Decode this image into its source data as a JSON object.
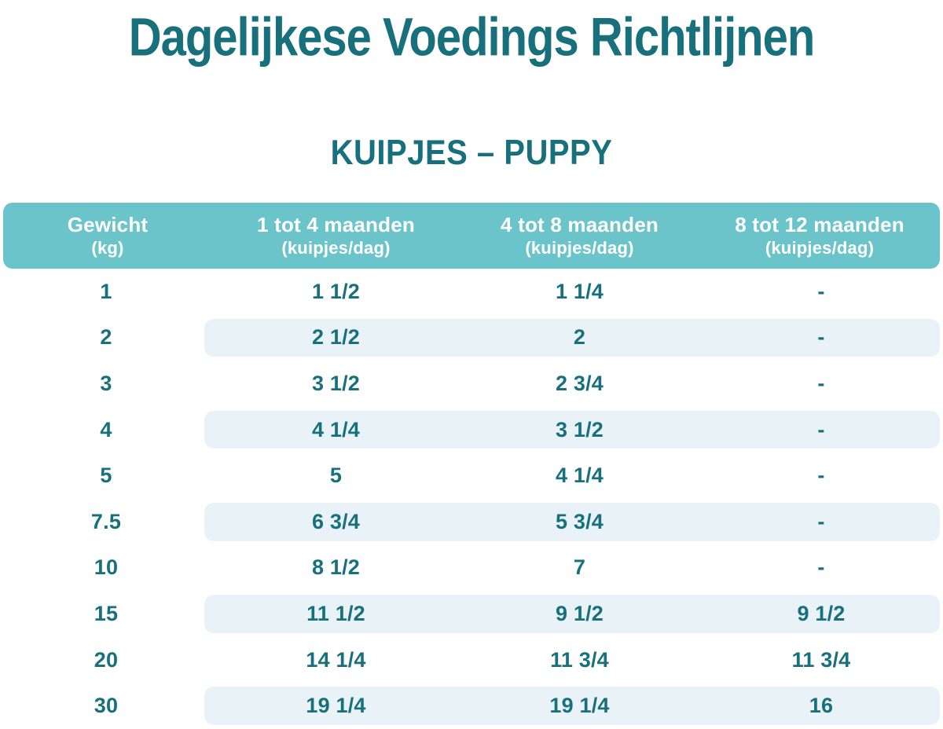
{
  "title": "Dagelijkese Voedings Richtlijnen",
  "subtitle": "KUIPJES – PUPPY",
  "chart_data": {
    "type": "table",
    "title": "Dagelijkese Voedings Richtlijnen",
    "subtitle": "KUIPJES – PUPPY",
    "columns": [
      {
        "label": "Gewicht",
        "sub": "(kg)"
      },
      {
        "label": "1 tot 4 maanden",
        "sub": "(kuipjes/dag)"
      },
      {
        "label": "4 tot 8 maanden",
        "sub": "(kuipjes/dag)"
      },
      {
        "label": "8 tot 12 maanden",
        "sub": "(kuipjes/dag)"
      }
    ],
    "rows": [
      [
        "1",
        "1 1/2",
        "1 1/4",
        "-"
      ],
      [
        "2",
        "2 1/2",
        "2",
        "-"
      ],
      [
        "3",
        "3 1/2",
        "2 3/4",
        "-"
      ],
      [
        "4",
        "4 1/4",
        "3 1/2",
        "-"
      ],
      [
        "5",
        "5",
        "4 1/4",
        "-"
      ],
      [
        "7.5",
        "6 3/4",
        "5 3/4",
        "-"
      ],
      [
        "10",
        "8 1/2",
        "7",
        "-"
      ],
      [
        "15",
        "11 1/2",
        "9 1/2",
        "9 1/2"
      ],
      [
        "20",
        "14 1/4",
        "11 3/4",
        "11 3/4"
      ],
      [
        "30",
        "19 1/4",
        "19 1/4",
        "16"
      ]
    ],
    "layout_hints": {
      "striped_rows": "even rows (2nd, 4th, ...) have light stripe spanning value columns only",
      "legend": "none",
      "grid": "off"
    }
  },
  "colors": {
    "header_bg": "#6BC4C9",
    "header_text": "#FFFFFF",
    "body_text": "#17707B",
    "stripe_bg": "#E9F3F7",
    "title_text": "#17707B",
    "page_bg": "#FFFFFF"
  }
}
